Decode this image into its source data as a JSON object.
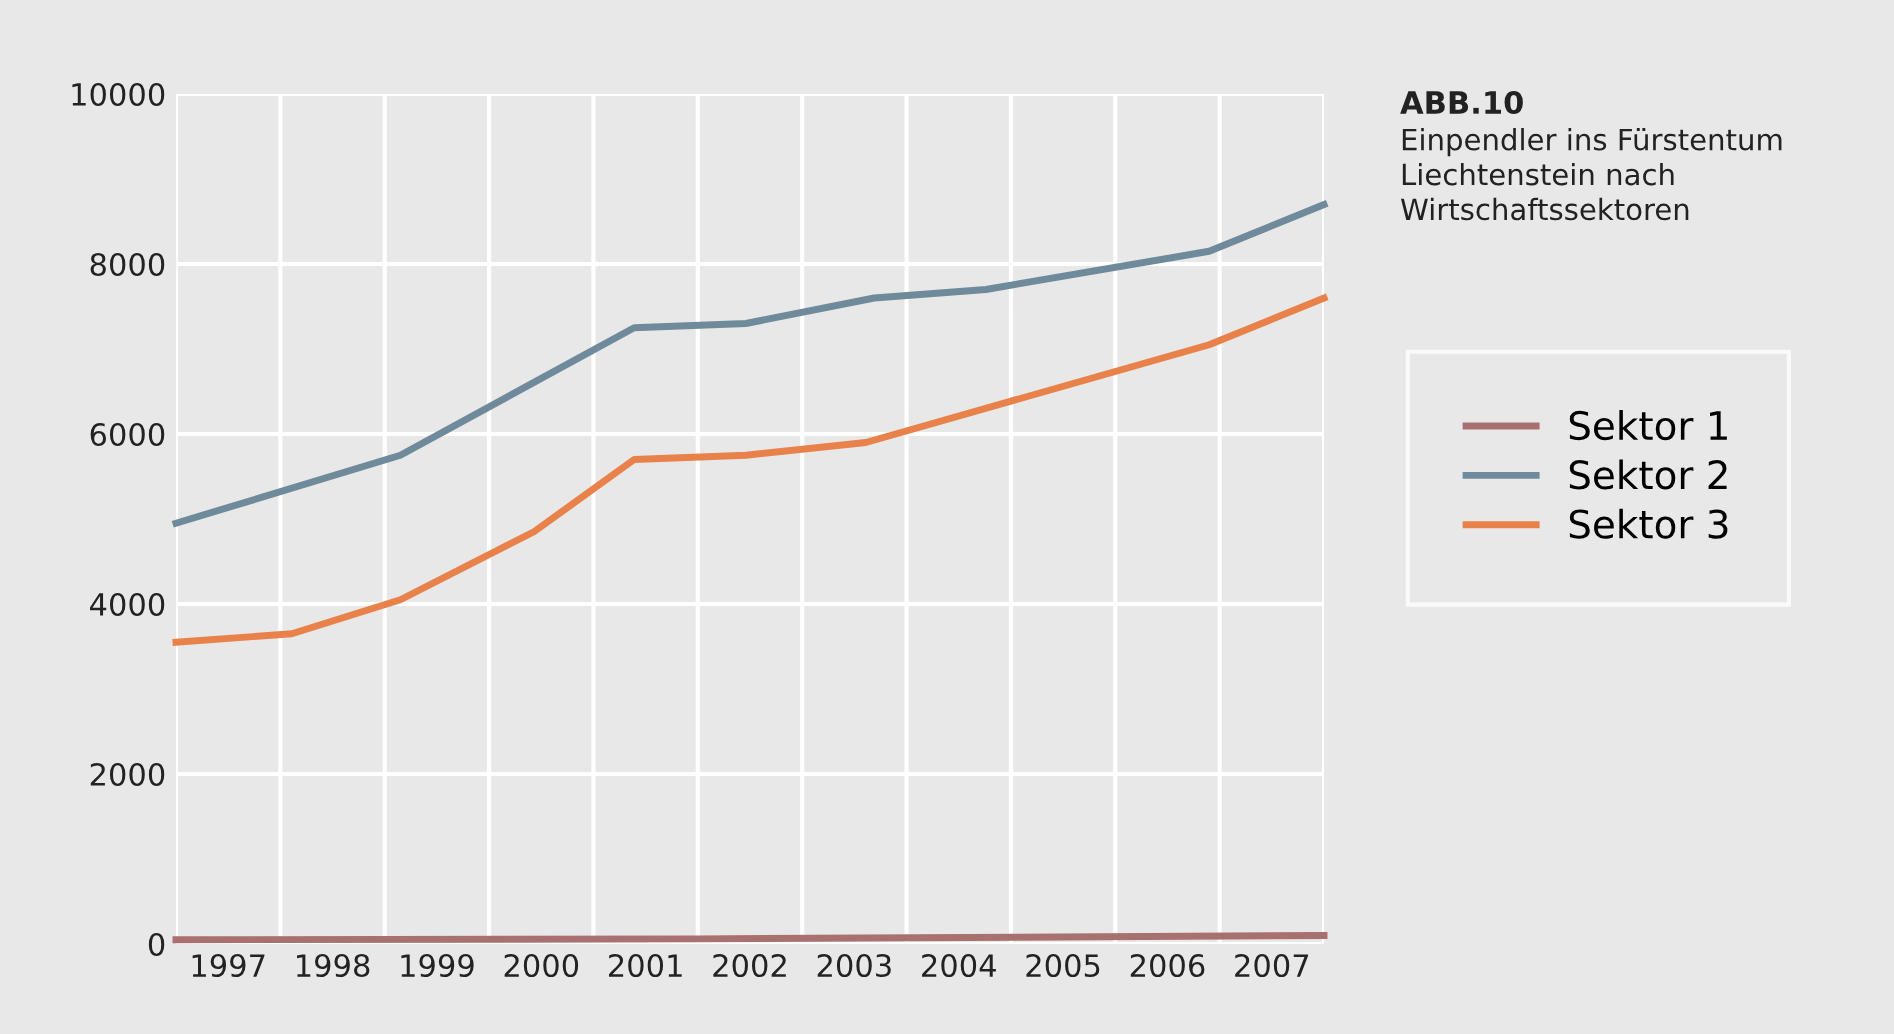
{
  "chart_data": {
    "type": "line",
    "title": "ABB.10",
    "subtitle": "Einpendler ins Fürstentum\nLiechtenstein nach\nWirtschaftssektoren",
    "xlim": [
      1997,
      2008
    ],
    "xticks": [
      {
        "value": 1997,
        "label": null
      },
      {
        "value": 1997.5,
        "label": "1997"
      },
      {
        "value": 1998,
        "label": null
      },
      {
        "value": 1998.5,
        "label": "1998"
      },
      {
        "value": 1999,
        "label": null
      },
      {
        "value": 1999.5,
        "label": "1999"
      },
      {
        "value": 2000,
        "label": null
      },
      {
        "value": 2000.5,
        "label": "2000"
      },
      {
        "value": 2001,
        "label": null
      },
      {
        "value": 2001.5,
        "label": "2001"
      },
      {
        "value": 2002,
        "label": null
      },
      {
        "value": 2002.5,
        "label": "2002"
      },
      {
        "value": 2003,
        "label": null
      },
      {
        "value": 2003.5,
        "label": "2003"
      },
      {
        "value": 2004,
        "label": null
      },
      {
        "value": 2004.5,
        "label": "2004"
      },
      {
        "value": 2005,
        "label": null
      },
      {
        "value": 2005.5,
        "label": "2005"
      },
      {
        "value": 2006,
        "label": null
      },
      {
        "value": 2006.5,
        "label": "2006"
      },
      {
        "value": 2007,
        "label": null
      },
      {
        "value": 2007.5,
        "label": "2007"
      },
      {
        "value": 2008,
        "label": null
      }
    ],
    "ylim": [
      0,
      10000
    ],
    "yticks": [
      0,
      2000,
      4000,
      6000,
      8000,
      10000
    ],
    "grid": true,
    "legend": "right",
    "marker": "none",
    "line_style": "solid",
    "series": [
      {
        "name": "Sektor 1",
        "color": "#a8706e",
        "x": [
          1997,
          2002,
          2008
        ],
        "values": [
          50,
          60,
          100
        ]
      },
      {
        "name": "Sektor 2",
        "color": "#6f8a9a",
        "x": [
          1997,
          1999.15,
          2001.39,
          2002.46,
          2003.69,
          2004.76,
          2006.9,
          2008
        ],
        "values": [
          4950,
          5750,
          7250,
          7300,
          7600,
          7700,
          8150,
          8700
        ]
      },
      {
        "name": "Sektor 3",
        "color": "#e8824a",
        "x": [
          1997,
          1998.11,
          1999.15,
          2000.43,
          2001.39,
          2002.46,
          2003.61,
          2006.9,
          2008
        ],
        "values": [
          3550,
          3650,
          4050,
          4850,
          5700,
          5750,
          5900,
          7050,
          7600
        ]
      }
    ]
  }
}
